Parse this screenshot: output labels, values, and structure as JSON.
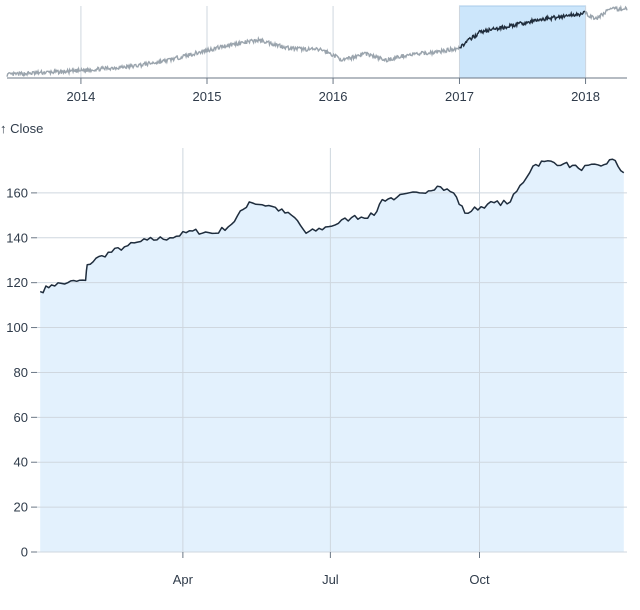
{
  "chart_data": [
    {
      "type": "area",
      "role": "overview-brush",
      "x_domain": [
        "2013-06-01",
        "2018-05-01"
      ],
      "y_domain": [
        70,
        180
      ],
      "x_tick_labels": [
        "2014",
        "2015",
        "2016",
        "2017",
        "2018"
      ],
      "x_tick_dates": [
        "2014-01-01",
        "2015-01-01",
        "2016-01-01",
        "2017-01-01",
        "2018-01-01"
      ],
      "brush_selection": [
        "2017-01-01",
        "2018-01-01"
      ],
      "grid": true,
      "series": [
        {
          "values": [
            {
              "x": "2013-06-01",
              "y": 75
            },
            {
              "x": "2013-09-01",
              "y": 78
            },
            {
              "x": "2013-12-01",
              "y": 80
            },
            {
              "x": "2014-03-01",
              "y": 84
            },
            {
              "x": "2014-06-01",
              "y": 88
            },
            {
              "x": "2014-09-01",
              "y": 96
            },
            {
              "x": "2014-12-01",
              "y": 108
            },
            {
              "x": "2015-03-01",
              "y": 120
            },
            {
              "x": "2015-06-01",
              "y": 128
            },
            {
              "x": "2015-09-01",
              "y": 115
            },
            {
              "x": "2015-12-01",
              "y": 113
            },
            {
              "x": "2016-02-01",
              "y": 97
            },
            {
              "x": "2016-04-01",
              "y": 108
            },
            {
              "x": "2016-06-01",
              "y": 97
            },
            {
              "x": "2016-08-01",
              "y": 105
            },
            {
              "x": "2016-11-01",
              "y": 110
            },
            {
              "x": "2016-12-30",
              "y": 116
            },
            {
              "x": "2017-03-01",
              "y": 140
            },
            {
              "x": "2017-06-01",
              "y": 150
            },
            {
              "x": "2017-09-01",
              "y": 160
            },
            {
              "x": "2017-12-29",
              "y": 169
            },
            {
              "x": "2018-02-01",
              "y": 160
            },
            {
              "x": "2018-03-10",
              "y": 175
            },
            {
              "x": "2018-05-01",
              "y": 176
            }
          ]
        }
      ]
    },
    {
      "type": "area",
      "role": "detail",
      "y_label": "↑ Close",
      "x_domain": [
        "2017-01-01",
        "2017-12-31"
      ],
      "ylim": [
        0,
        180
      ],
      "y_ticks": [
        0,
        20,
        40,
        60,
        80,
        100,
        120,
        140,
        160
      ],
      "x_tick_labels": [
        "Apr",
        "Jul",
        "Oct"
      ],
      "x_tick_dates": [
        "2017-04-01",
        "2017-07-01",
        "2017-10-01"
      ],
      "grid": true,
      "colors": {
        "line": "#1f2d3d",
        "area": "#e3f1fd",
        "grid": "#cfd7df",
        "brush": "#cce6fb",
        "overview_line": "#9aa4ad"
      },
      "series": [
        {
          "values": [
            {
              "x": "2017-01-03",
              "y": 116
            },
            {
              "x": "2017-01-10",
              "y": 119
            },
            {
              "x": "2017-01-20",
              "y": 120
            },
            {
              "x": "2017-01-31",
              "y": 121
            },
            {
              "x": "2017-02-01",
              "y": 128
            },
            {
              "x": "2017-02-10",
              "y": 132
            },
            {
              "x": "2017-02-24",
              "y": 136
            },
            {
              "x": "2017-03-10",
              "y": 139
            },
            {
              "x": "2017-03-24",
              "y": 140
            },
            {
              "x": "2017-04-07",
              "y": 143
            },
            {
              "x": "2017-04-21",
              "y": 142
            },
            {
              "x": "2017-05-01",
              "y": 146
            },
            {
              "x": "2017-05-12",
              "y": 156
            },
            {
              "x": "2017-05-26",
              "y": 154
            },
            {
              "x": "2017-06-09",
              "y": 149
            },
            {
              "x": "2017-06-16",
              "y": 142
            },
            {
              "x": "2017-06-30",
              "y": 145
            },
            {
              "x": "2017-07-14",
              "y": 149
            },
            {
              "x": "2017-07-28",
              "y": 150
            },
            {
              "x": "2017-08-02",
              "y": 157
            },
            {
              "x": "2017-08-11",
              "y": 158
            },
            {
              "x": "2017-08-25",
              "y": 160
            },
            {
              "x": "2017-09-05",
              "y": 163
            },
            {
              "x": "2017-09-15",
              "y": 160
            },
            {
              "x": "2017-09-22",
              "y": 151
            },
            {
              "x": "2017-10-06",
              "y": 155
            },
            {
              "x": "2017-10-20",
              "y": 156
            },
            {
              "x": "2017-11-03",
              "y": 172
            },
            {
              "x": "2017-11-10",
              "y": 174
            },
            {
              "x": "2017-11-22",
              "y": 173
            },
            {
              "x": "2017-12-01",
              "y": 171
            },
            {
              "x": "2017-12-15",
              "y": 172
            },
            {
              "x": "2017-12-22",
              "y": 175
            },
            {
              "x": "2017-12-29",
              "y": 169
            }
          ]
        }
      ]
    }
  ]
}
